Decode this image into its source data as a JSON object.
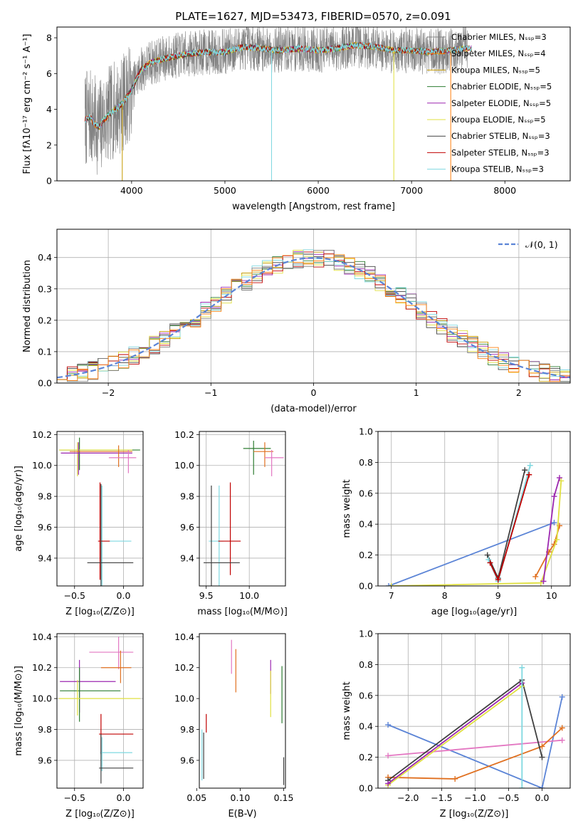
{
  "figure": {
    "title": "PLATE=1627, MJD=53473, FIBERID=0570, z=0.091"
  },
  "colors": {
    "Chabrier MILES": "#808080",
    "Salpeter MILES": "#ff7f0e",
    "Kroupa MILES": "#c49a00",
    "Chabrier ELODIE": "#2e7d32",
    "Salpeter ELODIE": "#9c27b0",
    "Kroupa ELODIE": "#e0e040",
    "Chabrier STELIB": "#404040",
    "Salpeter STELIB": "#c00000",
    "Kroupa STELIB": "#7fd8e0",
    "model_pink": "#e377c2",
    "model_orange": "#e07020",
    "model_blue": "#5b84d6",
    "normal_curve": "#5b84d6"
  },
  "chart_data": [
    {
      "id": "spectrum",
      "type": "line",
      "title": "PLATE=1627, MJD=53473, FIBERID=0570, z=0.091",
      "xlabel": "wavelength [Angstrom, rest frame]",
      "ylabel": "Flux [fλ10⁻¹⁷ erg cm⁻² s⁻¹ A⁻¹]",
      "xlim": [
        3200,
        8700
      ],
      "ylim": [
        0,
        8.6
      ],
      "xticks": [
        4000,
        5000,
        6000,
        7000,
        8000
      ],
      "yticks": [
        0,
        2,
        4,
        6,
        8
      ],
      "legend_position": "right",
      "legend": [
        "Chabrier MILES, Nₛₛₚ=3",
        "Salpeter MILES, Nₛₛₚ=4",
        "Kroupa MILES, Nₛₛₚ=5",
        "Chabrier ELODIE, Nₛₛₚ=5",
        "Salpeter ELODIE, Nₛₛₚ=5",
        "Kroupa ELODIE, Nₛₛₚ=5",
        "Chabrier STELIB, Nₛₛₚ=3",
        "Salpeter STELIB, Nₛₛₚ=3",
        "Kroupa STELIB, Nₛₛₚ=3"
      ],
      "continuum": {
        "wavelength": [
          3500,
          3550,
          3600,
          3650,
          3700,
          3800,
          3900,
          4000,
          4100,
          4200,
          4400,
          4600,
          4800,
          5000,
          5200,
          5400,
          5600,
          5800,
          6000,
          6200,
          6400,
          6600,
          6800,
          7000,
          7200,
          7400,
          7600
        ],
        "flux": [
          3.4,
          3.6,
          3.2,
          3.0,
          3.4,
          3.9,
          4.3,
          5.1,
          6.2,
          6.6,
          6.9,
          7.1,
          7.2,
          7.2,
          7.5,
          7.4,
          7.3,
          7.4,
          7.3,
          7.4,
          7.6,
          7.5,
          7.3,
          7.3,
          7.2,
          7.3,
          7.4
        ]
      }
    },
    {
      "id": "residuals",
      "type": "line",
      "xlabel": "(data-model)/error",
      "ylabel": "Normed distribution",
      "xlim": [
        -2.5,
        2.5
      ],
      "ylim": [
        0,
        0.49
      ],
      "xticks": [
        -2,
        -1,
        0,
        1,
        2
      ],
      "yticks": [
        0.0,
        0.1,
        0.2,
        0.3,
        0.4
      ],
      "legend": [
        "𝒩(0, 1)"
      ],
      "legend_position": "top-right",
      "grid": true,
      "histogram_bin_width": 0.1
    },
    {
      "id": "age_vs_Z",
      "type": "scatter",
      "xlabel": "Z [log₁₀(Z/Z⊙)]",
      "ylabel": "age  [log₁₀(age/yr)]",
      "xlim": [
        -0.68,
        0.2
      ],
      "ylim": [
        9.22,
        10.22
      ],
      "xticks": [
        -0.5,
        0.0
      ],
      "yticks": [
        9.4,
        9.6,
        9.8,
        10.0,
        10.2
      ],
      "grid": true,
      "points": [
        {
          "x": -0.45,
          "y": 10.1,
          "xerr": [
            0.2,
            0.62
          ],
          "yerr": [
            0.13,
            0.08
          ],
          "color": "Chabrier ELODIE"
        },
        {
          "x": -0.47,
          "y": 10.1,
          "xerr": [
            0.19,
            0.56
          ],
          "yerr": [
            0.17,
            0.05
          ],
          "color": "Kroupa ELODIE"
        },
        {
          "x": -0.46,
          "y": 10.08,
          "xerr": [
            0.18,
            0.55
          ],
          "yerr": [
            0.14,
            0.07
          ],
          "color": "Salpeter ELODIE"
        },
        {
          "x": -0.05,
          "y": 10.09,
          "xerr": [
            0.5,
            0.14
          ],
          "yerr": [
            0.1,
            0.04
          ],
          "color": "model_orange"
        },
        {
          "x": 0.05,
          "y": 10.05,
          "xerr": [
            0.2,
            0.08
          ],
          "yerr": [
            0.1,
            0.05
          ],
          "color": "model_pink"
        },
        {
          "x": -0.22,
          "y": 9.51,
          "xerr": [
            0.02,
            0.3
          ],
          "yerr": [
            0.37,
            0.36
          ],
          "color": "Kroupa STELIB"
        },
        {
          "x": -0.24,
          "y": 9.51,
          "xerr": [
            0.02,
            0.1
          ],
          "yerr": [
            0.25,
            0.38
          ],
          "color": "Salpeter STELIB"
        },
        {
          "x": -0.23,
          "y": 9.37,
          "xerr": [
            0.14,
            0.33
          ],
          "yerr": [
            0.15,
            0.51
          ],
          "color": "Chabrier STELIB"
        }
      ]
    },
    {
      "id": "age_vs_mass",
      "type": "scatter",
      "xlabel": "mass [log₁₀(M/M⊙)]",
      "ylabel": "",
      "xlim": [
        9.42,
        10.42
      ],
      "ylim": [
        9.22,
        10.22
      ],
      "xticks": [
        9.5,
        10.0
      ],
      "yticks": [
        9.4,
        9.6,
        9.8,
        10.0,
        10.2
      ],
      "grid": true,
      "points": [
        {
          "x": 10.05,
          "y": 10.11,
          "xerr": [
            0.12,
            0.2
          ],
          "yerr": [
            0.17,
            0.05
          ],
          "color": "Chabrier ELODIE"
        },
        {
          "x": 10.18,
          "y": 10.09,
          "xerr": [
            0.13,
            0.1
          ],
          "yerr": [
            0.1,
            0.06
          ],
          "color": "model_orange"
        },
        {
          "x": 10.26,
          "y": 10.05,
          "xerr": [
            0.08,
            0.14
          ],
          "yerr": [
            0.12,
            0.05
          ],
          "color": "model_pink"
        },
        {
          "x": 9.65,
          "y": 9.51,
          "xerr": [
            0.12,
            0.05
          ],
          "yerr": [
            0.37,
            0.36
          ],
          "color": "Kroupa STELIB"
        },
        {
          "x": 9.78,
          "y": 9.51,
          "xerr": [
            0.14,
            0.12
          ],
          "yerr": [
            0.22,
            0.38
          ],
          "color": "Salpeter STELIB"
        },
        {
          "x": 9.56,
          "y": 9.37,
          "xerr": [
            0.09,
            0.33
          ],
          "yerr": [
            0.15,
            0.5
          ],
          "color": "Chabrier STELIB"
        }
      ]
    },
    {
      "id": "mass_weight_vs_age",
      "type": "line",
      "xlabel": "age  [log₁₀(age/yr)]",
      "ylabel": "mass weight",
      "xlim": [
        6.75,
        10.35
      ],
      "ylim": [
        0,
        1.0
      ],
      "xticks": [
        7,
        8,
        9,
        10
      ],
      "yticks": [
        0.0,
        0.2,
        0.4,
        0.6,
        0.8,
        1.0
      ],
      "grid": true,
      "series": [
        {
          "color": "model_blue",
          "x": [
            6.95,
            10.05
          ],
          "y": [
            0.0,
            0.41
          ]
        },
        {
          "color": "Chabrier STELIB",
          "x": [
            8.8,
            9.0,
            9.5
          ],
          "y": [
            0.2,
            0.05,
            0.75
          ]
        },
        {
          "color": "Kroupa STELIB",
          "x": [
            8.82,
            9.0,
            9.6
          ],
          "y": [
            0.17,
            0.03,
            0.78
          ]
        },
        {
          "color": "Salpeter STELIB",
          "x": [
            8.85,
            9.0,
            9.58
          ],
          "y": [
            0.15,
            0.04,
            0.72
          ]
        },
        {
          "color": "model_orange",
          "x": [
            9.7,
            9.95,
            10.05,
            10.15
          ],
          "y": [
            0.06,
            0.22,
            0.27,
            0.39
          ]
        },
        {
          "color": "Kroupa ELODIE",
          "x": [
            7.0,
            9.8,
            10.1,
            10.18
          ],
          "y": [
            0.0,
            0.02,
            0.3,
            0.68
          ]
        },
        {
          "color": "Salpeter ELODIE",
          "x": [
            9.85,
            10.05,
            10.15
          ],
          "y": [
            0.03,
            0.58,
            0.7
          ]
        }
      ]
    },
    {
      "id": "mass_vs_Z",
      "type": "scatter",
      "xlabel": "Z [log₁₀(Z/Z⊙)]",
      "ylabel": "mass [log₁₀(M/M⊙)]",
      "xlim": [
        -0.68,
        0.2
      ],
      "ylim": [
        9.42,
        10.42
      ],
      "xticks": [
        -0.5,
        0.0
      ],
      "yticks": [
        9.6,
        9.8,
        10.0,
        10.2,
        10.4
      ],
      "grid": true,
      "points": [
        {
          "x": -0.05,
          "y": 10.3,
          "xerr": [
            0.3,
            0.15
          ],
          "yerr": [
            0.11,
            0.1
          ],
          "color": "model_pink"
        },
        {
          "x": -0.03,
          "y": 10.2,
          "xerr": [
            0.2,
            0.11
          ],
          "yerr": [
            0.1,
            0.11
          ],
          "color": "model_orange"
        },
        {
          "x": -0.45,
          "y": 10.11,
          "xerr": [
            0.2,
            0.37
          ],
          "yerr": [
            0.2,
            0.14
          ],
          "color": "Salpeter ELODIE"
        },
        {
          "x": -0.45,
          "y": 10.05,
          "xerr": [
            0.2,
            0.42
          ],
          "yerr": [
            0.2,
            0.15
          ],
          "color": "Chabrier ELODIE"
        },
        {
          "x": -0.47,
          "y": 10.0,
          "xerr": [
            0.19,
            0.64
          ],
          "yerr": [
            0.11,
            0.12
          ],
          "color": "Kroupa ELODIE"
        },
        {
          "x": -0.23,
          "y": 9.77,
          "xerr": [
            0.02,
            0.33
          ],
          "yerr": [
            0.13,
            0.13
          ],
          "color": "Salpeter STELIB"
        },
        {
          "x": -0.22,
          "y": 9.65,
          "xerr": [
            0.02,
            0.31
          ],
          "yerr": [
            0.12,
            0.1
          ],
          "color": "Kroupa STELIB"
        },
        {
          "x": -0.23,
          "y": 9.55,
          "xerr": [
            0.02,
            0.33
          ],
          "yerr": [
            0.1,
            0.22
          ],
          "color": "Chabrier STELIB"
        }
      ]
    },
    {
      "id": "mass_vs_EBV",
      "type": "scatter",
      "xlabel": "E(B-V)",
      "ylabel": "",
      "xlim": [
        0.053,
        0.152
      ],
      "ylim": [
        9.42,
        10.42
      ],
      "xticks": [
        0.05,
        0.1,
        0.15
      ],
      "xticklabels": [
        "0.05",
        "0.10",
        "0.15"
      ],
      "yticks": [
        9.6,
        9.8,
        10.0,
        10.2,
        10.4
      ],
      "grid": false,
      "vlines": [
        {
          "x": 0.056,
          "y0": 9.47,
          "y1": 9.8,
          "color": "Kroupa STELIB"
        },
        {
          "x": 0.058,
          "y0": 9.48,
          "y1": 9.78,
          "color": "Chabrier STELIB"
        },
        {
          "x": 0.061,
          "y0": 9.78,
          "y1": 9.9,
          "color": "Salpeter STELIB"
        },
        {
          "x": 0.09,
          "y0": 10.16,
          "y1": 10.38,
          "color": "model_pink"
        },
        {
          "x": 0.095,
          "y0": 10.04,
          "y1": 10.32,
          "color": "model_orange"
        },
        {
          "x": 0.135,
          "y0": 10.03,
          "y1": 10.25,
          "color": "Salpeter ELODIE"
        },
        {
          "x": 0.135,
          "y0": 9.88,
          "y1": 10.18,
          "color": "Kroupa ELODIE"
        },
        {
          "x": 0.148,
          "y0": 9.84,
          "y1": 10.21,
          "color": "Chabrier ELODIE"
        },
        {
          "x": 0.15,
          "y0": 9.44,
          "y1": 9.62,
          "color": "Chabrier STELIB"
        }
      ]
    },
    {
      "id": "mass_weight_vs_Z",
      "type": "line",
      "xlabel": "Z [log₁₀(Z/Z⊙)]",
      "ylabel": "mass weight",
      "xlim": [
        -2.45,
        0.42
      ],
      "ylim": [
        0,
        1.0
      ],
      "xticks": [
        -2.0,
        -1.5,
        -1.0,
        -0.5,
        0.0
      ],
      "yticks": [
        0.0,
        0.2,
        0.4,
        0.6,
        0.8,
        1.0
      ],
      "grid": true,
      "series": [
        {
          "color": "model_blue",
          "x": [
            -2.3,
            0.0,
            0.3
          ],
          "y": [
            0.41,
            0.0,
            0.59
          ]
        },
        {
          "color": "model_pink",
          "x": [
            -2.3,
            0.3
          ],
          "y": [
            0.21,
            0.31
          ]
        },
        {
          "color": "model_orange",
          "x": [
            -2.3,
            -1.3,
            0.0,
            0.3
          ],
          "y": [
            0.07,
            0.06,
            0.27,
            0.39
          ]
        },
        {
          "color": "Chabrier STELIB",
          "x": [
            -2.3,
            -0.3,
            0.0
          ],
          "y": [
            0.05,
            0.7,
            0.2
          ]
        },
        {
          "color": "Kroupa ELODIE",
          "x": [
            -2.3,
            -0.3
          ],
          "y": [
            0.02,
            0.66
          ]
        },
        {
          "color": "Salpeter ELODIE",
          "x": [
            -2.3,
            -0.3
          ],
          "y": [
            0.03,
            0.68
          ]
        },
        {
          "color": "Kroupa STELIB",
          "x": [
            -0.3,
            -0.3
          ],
          "y": [
            0.0,
            0.78
          ]
        }
      ]
    }
  ]
}
